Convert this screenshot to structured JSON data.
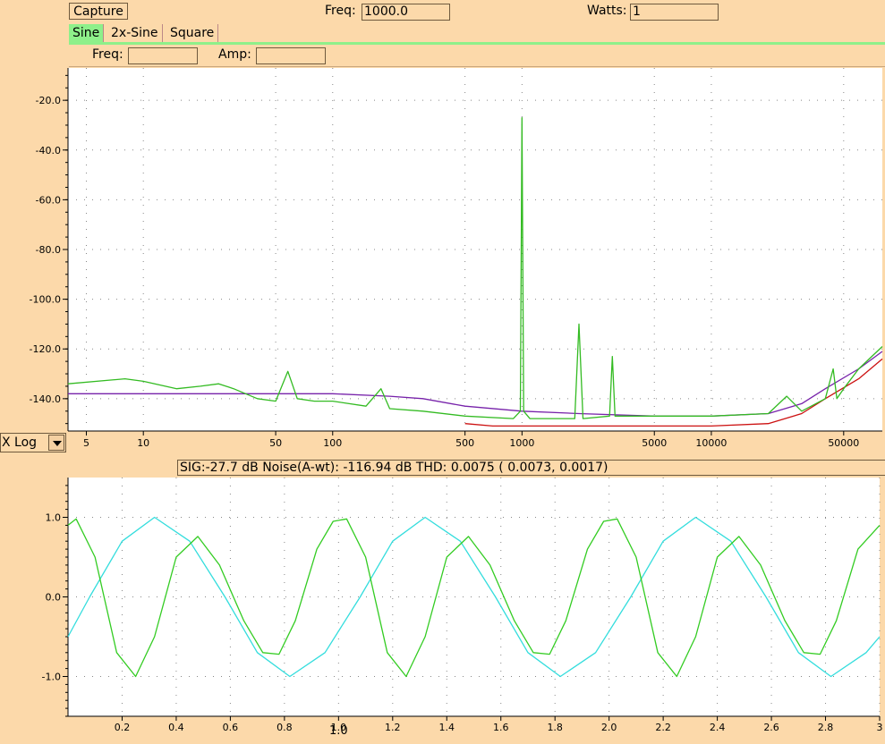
{
  "toolbar": {
    "capture_label": "Capture",
    "freq_label": "Freq:",
    "freq_value": "1000.0",
    "watts_label": "Watts:",
    "watts_value": "1"
  },
  "tabs": [
    {
      "label": "Sine",
      "active": true
    },
    {
      "label": "2x-Sine",
      "active": false
    },
    {
      "label": "Square",
      "active": false
    }
  ],
  "sine_panel": {
    "freq_label": "Freq:",
    "freq_value": "",
    "amp_label": "Amp:",
    "amp_value": ""
  },
  "x_scale": {
    "selected": "X Log"
  },
  "status_text": "SIG:-27.7 dB Noise(A-wt): -116.94 dB THD: 0.0075 ( 0.0073, 0.0017)",
  "colors": {
    "background": "#fcd9aa",
    "active_tab": "#8ef08a",
    "spectrum_green": "#33bb22",
    "spectrum_red": "#cc1111",
    "spectrum_purple": "#7722aa",
    "wave_cyan": "#33dddd",
    "wave_green": "#33cc22"
  },
  "chart_data": [
    {
      "type": "line",
      "title": "",
      "xlabel": "",
      "ylabel": "",
      "x_scale": "log",
      "xlim": [
        4,
        80000
      ],
      "ylim": [
        -153,
        -7
      ],
      "grid": true,
      "y_ticks": [
        -20.0,
        -40.0,
        -60.0,
        -80.0,
        -100.0,
        -120.0,
        -140.0
      ],
      "y_tick_labels": [
        "-20.0",
        "-40.0",
        "-60.0",
        "-80.0",
        "-100.0",
        "-120.0",
        "-140.0"
      ],
      "x_ticks": [
        5,
        10,
        50,
        100,
        500,
        1000,
        5000,
        10000,
        50000
      ],
      "x_tick_labels": [
        "5",
        "10",
        "50",
        "100",
        "500",
        "1000",
        "5000",
        "10000",
        "50000"
      ],
      "series": [
        {
          "color": "#7722aa",
          "x": [
            4,
            10,
            30,
            100,
            200,
            300,
            500,
            1000,
            2000,
            5000,
            10000,
            20000,
            30000,
            40000,
            60000,
            80000
          ],
          "y": [
            -138,
            -138,
            -138,
            -138,
            -139,
            -140,
            -143,
            -145,
            -146,
            -147,
            -147,
            -146,
            -142,
            -136,
            -128,
            -121
          ]
        },
        {
          "color": "#cc1111",
          "x": [
            500,
            700,
            1000,
            2000,
            5000,
            10000,
            20000,
            30000,
            40000,
            60000,
            80000
          ],
          "y": [
            -150,
            -151,
            -151,
            -151,
            -151,
            -151,
            -150,
            -146,
            -140,
            -132,
            -124
          ]
        },
        {
          "color": "#33bb22",
          "x": [
            4,
            8,
            10,
            15,
            20,
            25,
            30,
            40,
            50,
            58,
            65,
            80,
            100,
            150,
            180,
            200,
            300,
            500,
            900,
            980,
            1000,
            1020,
            1100,
            1900,
            2000,
            2100,
            2900,
            3000,
            3100,
            5000,
            10000,
            20000,
            25000,
            30000,
            40000,
            44000,
            46000,
            50000,
            60000,
            80000
          ],
          "y": [
            -134,
            -132,
            -133,
            -136,
            -135,
            -134,
            -136,
            -140,
            -141,
            -129,
            -140,
            -141,
            -141,
            -143,
            -136,
            -144,
            -145,
            -147,
            -148,
            -145,
            -27,
            -145,
            -148,
            -148,
            -110,
            -148,
            -147,
            -123,
            -147,
            -147,
            -147,
            -146,
            -139,
            -145,
            -140,
            -128,
            -140,
            -136,
            -128,
            -119
          ]
        }
      ]
    },
    {
      "type": "line",
      "title": "",
      "xlabel": "1.0",
      "ylabel": "",
      "xlim": [
        0,
        3
      ],
      "ylim": [
        -1.5,
        1.5
      ],
      "grid": true,
      "y_ticks": [
        1.0,
        0.0,
        -1.0
      ],
      "y_tick_labels": [
        "1.0",
        "0.0",
        "-1.0"
      ],
      "x_ticks": [
        0.2,
        0.4,
        0.6,
        0.8,
        1.0,
        1.2,
        1.4,
        1.6,
        1.8,
        2.0,
        2.2,
        2.4,
        2.6,
        2.8,
        3.0
      ],
      "x_tick_labels": [
        "0.2",
        "0.4",
        "0.6",
        "0.8",
        "1.0",
        "1.2",
        "1.4",
        "1.6",
        "1.8",
        "2.0",
        "2.2",
        "2.4",
        "2.6",
        "2.8",
        "3"
      ],
      "series": [
        {
          "color": "#33dddd",
          "x": [
            0,
            0.08,
            0.2,
            0.32,
            0.45,
            0.58,
            0.7,
            0.82,
            0.95,
            1.08,
            1.2,
            1.32,
            1.45,
            1.58,
            1.7,
            1.82,
            1.95,
            2.08,
            2.2,
            2.32,
            2.45,
            2.58,
            2.7,
            2.82,
            2.95,
            3.0
          ],
          "y": [
            -0.5,
            0.0,
            0.7,
            1.0,
            0.7,
            0.0,
            -0.7,
            -1.0,
            -0.7,
            0.0,
            0.7,
            1.0,
            0.7,
            0.0,
            -0.7,
            -1.0,
            -0.7,
            0.0,
            0.7,
            1.0,
            0.7,
            0.0,
            -0.7,
            -1.0,
            -0.7,
            -0.5
          ]
        },
        {
          "color": "#33cc22",
          "x": [
            0,
            0.03,
            0.1,
            0.18,
            0.25,
            0.32,
            0.4,
            0.48,
            0.56,
            0.65,
            0.72,
            0.78,
            0.84,
            0.92,
            0.98,
            1.03,
            1.1,
            1.18,
            1.25,
            1.32,
            1.4,
            1.48,
            1.56,
            1.65,
            1.72,
            1.78,
            1.84,
            1.92,
            1.98,
            2.03,
            2.1,
            2.18,
            2.25,
            2.32,
            2.4,
            2.48,
            2.56,
            2.65,
            2.72,
            2.78,
            2.84,
            2.92,
            3.0
          ],
          "y": [
            0.9,
            0.98,
            0.5,
            -0.7,
            -1.0,
            -0.5,
            0.5,
            0.76,
            0.4,
            -0.3,
            -0.7,
            -0.72,
            -0.3,
            0.6,
            0.95,
            0.98,
            0.5,
            -0.7,
            -1.0,
            -0.5,
            0.5,
            0.76,
            0.4,
            -0.3,
            -0.7,
            -0.72,
            -0.3,
            0.6,
            0.95,
            0.98,
            0.5,
            -0.7,
            -1.0,
            -0.5,
            0.5,
            0.76,
            0.4,
            -0.3,
            -0.7,
            -0.72,
            -0.3,
            0.6,
            0.9
          ]
        }
      ]
    }
  ]
}
